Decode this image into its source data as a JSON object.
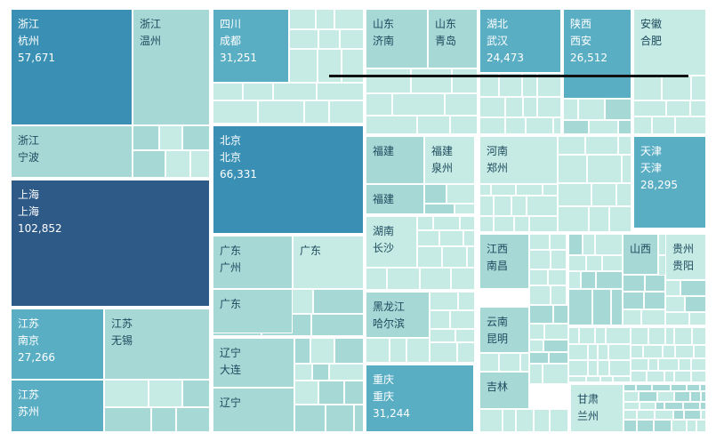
{
  "chart_data": {
    "type": "treemap",
    "title": "",
    "colors": {
      "darkest": "#2e5a88",
      "dark": "#3a90b4",
      "mid": "#5aaec4",
      "light": "#a6d8d6",
      "lightest": "#c5ebe4",
      "text_light": "#ffffff",
      "text_dark": "#1e4a5e",
      "separator_line": "#111111"
    },
    "cells": [
      {
        "id": "zj-hz",
        "province": "浙江",
        "city": "杭州",
        "value": 57671,
        "value_label": "57,671",
        "shade": "dark"
      },
      {
        "id": "zj-wz",
        "province": "浙江",
        "city": "温州",
        "value": null,
        "value_label": "",
        "shade": "light"
      },
      {
        "id": "zj-nb",
        "province": "浙江",
        "city": "宁波",
        "value": null,
        "value_label": "",
        "shade": "light"
      },
      {
        "id": "sh-sh",
        "province": "上海",
        "city": "上海",
        "value": 102852,
        "value_label": "102,852",
        "shade": "darkest"
      },
      {
        "id": "js-nj",
        "province": "江苏",
        "city": "南京",
        "value": 27266,
        "value_label": "27,266",
        "shade": "mid"
      },
      {
        "id": "js-wx",
        "province": "江苏",
        "city": "无锡",
        "value": null,
        "value_label": "",
        "shade": "light"
      },
      {
        "id": "js-sz",
        "province": "江苏",
        "city": "苏州",
        "value": null,
        "value_label": "",
        "shade": "mid"
      },
      {
        "id": "sc-cd",
        "province": "四川",
        "city": "成都",
        "value": 31251,
        "value_label": "31,251",
        "shade": "mid"
      },
      {
        "id": "bj-bj",
        "province": "北京",
        "city": "北京",
        "value": 66331,
        "value_label": "66,331",
        "shade": "dark"
      },
      {
        "id": "gd-gz",
        "province": "广东",
        "city": "广州",
        "value": null,
        "value_label": "",
        "shade": "light"
      },
      {
        "id": "gd-2",
        "province": "广东",
        "city": "",
        "value": null,
        "value_label": "",
        "shade": "lightest"
      },
      {
        "id": "gd-3",
        "province": "广东",
        "city": "",
        "value": null,
        "value_label": "",
        "shade": "light"
      },
      {
        "id": "ln-dl",
        "province": "辽宁",
        "city": "大连",
        "value": null,
        "value_label": "",
        "shade": "light"
      },
      {
        "id": "ln-2",
        "province": "辽宁",
        "city": "",
        "value": null,
        "value_label": "",
        "shade": "light"
      },
      {
        "id": "sd-jn",
        "province": "山东",
        "city": "济南",
        "value": null,
        "value_label": "",
        "shade": "light"
      },
      {
        "id": "sd-qd",
        "province": "山东",
        "city": "青岛",
        "value": null,
        "value_label": "",
        "shade": "light"
      },
      {
        "id": "hb-wh",
        "province": "湖北",
        "city": "武汉",
        "value": 24473,
        "value_label": "24,473",
        "shade": "mid"
      },
      {
        "id": "sx-xa",
        "province": "陕西",
        "city": "西安",
        "value": 26512,
        "value_label": "26,512",
        "shade": "mid"
      },
      {
        "id": "ah-hf",
        "province": "安徽",
        "city": "合肥",
        "value": null,
        "value_label": "",
        "shade": "lightest"
      },
      {
        "id": "fj-1",
        "province": "福建",
        "city": "",
        "value": null,
        "value_label": "",
        "shade": "light"
      },
      {
        "id": "fj-qz",
        "province": "福建",
        "city": "泉州",
        "value": null,
        "value_label": "",
        "shade": "lightest"
      },
      {
        "id": "fj-3",
        "province": "福建",
        "city": "",
        "value": null,
        "value_label": "",
        "shade": "light"
      },
      {
        "id": "hn-zz",
        "province": "河南",
        "city": "郑州",
        "value": null,
        "value_label": "",
        "shade": "lightest"
      },
      {
        "id": "tj-tj",
        "province": "天津",
        "city": "天津",
        "value": 28295,
        "value_label": "28,295",
        "shade": "mid"
      },
      {
        "id": "hun-cs",
        "province": "湖南",
        "city": "长沙",
        "value": null,
        "value_label": "",
        "shade": "lightest"
      },
      {
        "id": "jx-nc",
        "province": "江西",
        "city": "南昌",
        "value": null,
        "value_label": "",
        "shade": "light"
      },
      {
        "id": "sx2",
        "province": "山西",
        "city": "",
        "value": null,
        "value_label": "",
        "shade": "light"
      },
      {
        "id": "gz-gy",
        "province": "贵州",
        "city": "贵阳",
        "value": null,
        "value_label": "",
        "shade": "lightest"
      },
      {
        "id": "hlj-heb",
        "province": "黑龙江",
        "city": "哈尔滨",
        "value": null,
        "value_label": "",
        "shade": "light"
      },
      {
        "id": "yn-km",
        "province": "云南",
        "city": "昆明",
        "value": null,
        "value_label": "",
        "shade": "light"
      },
      {
        "id": "cq-cq",
        "province": "重庆",
        "city": "重庆",
        "value": 31244,
        "value_label": "31,244",
        "shade": "mid"
      },
      {
        "id": "jl",
        "province": "吉林",
        "city": "",
        "value": null,
        "value_label": "",
        "shade": "light"
      },
      {
        "id": "gs-lz",
        "province": "甘肃",
        "city": "兰州",
        "value": null,
        "value_label": "",
        "shade": "lightest"
      }
    ]
  }
}
